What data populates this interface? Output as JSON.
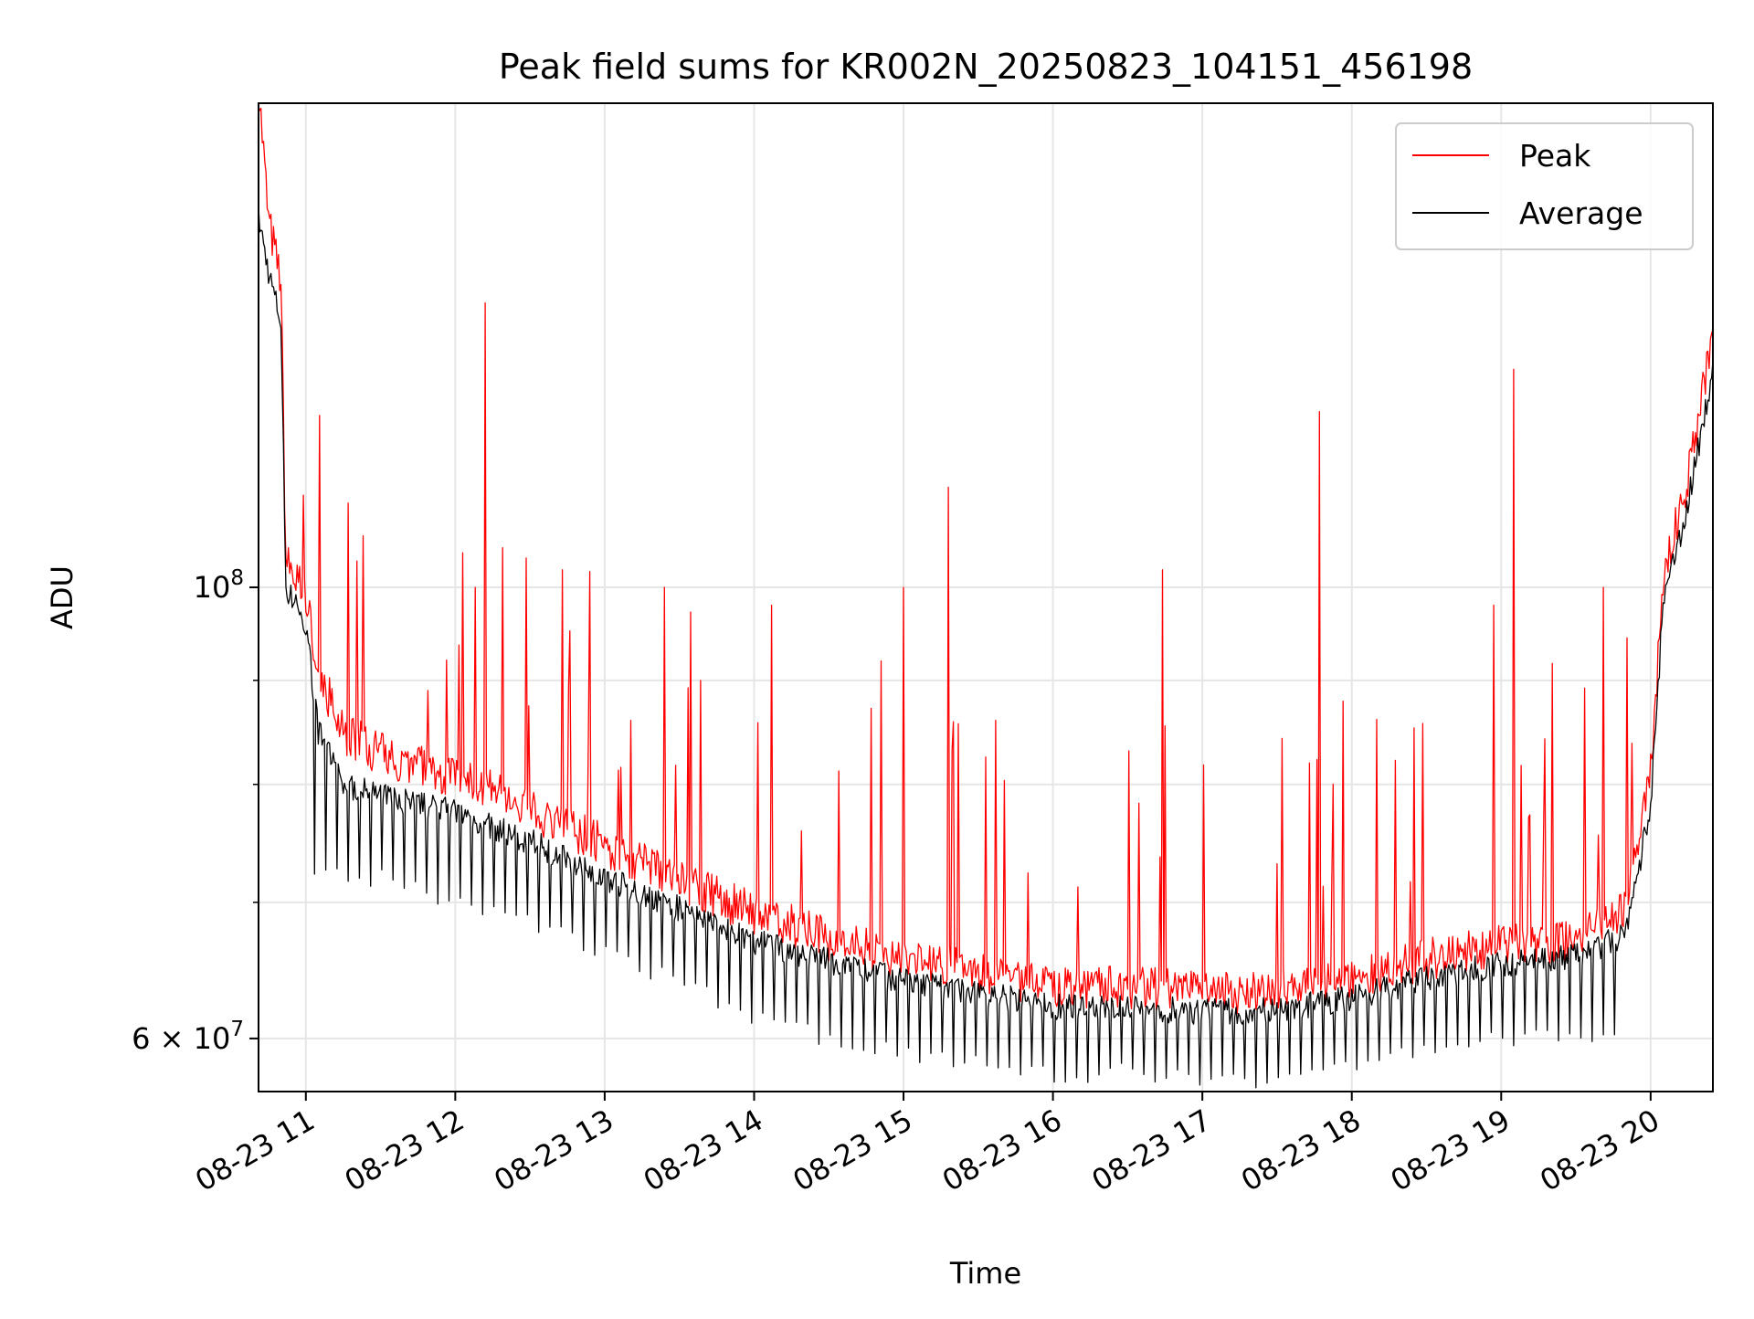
{
  "chart_data": {
    "type": "line",
    "title": "Peak field sums for KR002N_20250823_104151_456198",
    "xlabel": "Time",
    "ylabel": "ADU",
    "y_scale": "log",
    "x_range": [
      "2025-08-23 10:41",
      "2025-08-23 20:25"
    ],
    "ylim": [
      56500000,
      173000000
    ],
    "x_ticks": [
      {
        "t": "2025-08-23 11:00",
        "label": "08-23 11"
      },
      {
        "t": "2025-08-23 12:00",
        "label": "08-23 12"
      },
      {
        "t": "2025-08-23 13:00",
        "label": "08-23 13"
      },
      {
        "t": "2025-08-23 14:00",
        "label": "08-23 14"
      },
      {
        "t": "2025-08-23 15:00",
        "label": "08-23 15"
      },
      {
        "t": "2025-08-23 16:00",
        "label": "08-23 16"
      },
      {
        "t": "2025-08-23 17:00",
        "label": "08-23 17"
      },
      {
        "t": "2025-08-23 18:00",
        "label": "08-23 18"
      },
      {
        "t": "2025-08-23 19:00",
        "label": "08-23 19"
      },
      {
        "t": "2025-08-23 20:00",
        "label": "08-23 20"
      }
    ],
    "y_major_ticks": [
      {
        "value": 60000000,
        "mantissa": "6",
        "times": "×",
        "base": "10",
        "exp": "7"
      },
      {
        "value": 100000000,
        "mantissa": "",
        "times": "",
        "base": "10",
        "exp": "8"
      }
    ],
    "y_minor_ticks": [
      70000000,
      80000000,
      90000000
    ],
    "grid": true,
    "legend_position": "top-right",
    "series": [
      {
        "name": "Peak",
        "color": "#ff0000",
        "points": [
          [
            "2025-08-23 10:41",
            175000000
          ],
          [
            "2025-08-23 10:45",
            150000000
          ],
          [
            "2025-08-23 10:50",
            140000000
          ],
          [
            "2025-08-23 10:52",
            102000000
          ],
          [
            "2025-08-23 11:00",
            98000000
          ],
          [
            "2025-08-23 11:05",
            90000000
          ],
          [
            "2025-08-23 11:15",
            84000000
          ],
          [
            "2025-08-23 11:30",
            82000000
          ],
          [
            "2025-08-23 12:00",
            80000000
          ],
          [
            "2025-08-23 12:30",
            77000000
          ],
          [
            "2025-08-23 13:00",
            74000000
          ],
          [
            "2025-08-23 13:30",
            71000000
          ],
          [
            "2025-08-23 14:00",
            68500000
          ],
          [
            "2025-08-23 14:30",
            66500000
          ],
          [
            "2025-08-23 15:00",
            65000000
          ],
          [
            "2025-08-23 15:30",
            64000000
          ],
          [
            "2025-08-23 16:00",
            63000000
          ],
          [
            "2025-08-23 16:30",
            63000000
          ],
          [
            "2025-08-23 17:00",
            62500000
          ],
          [
            "2025-08-23 17:30",
            62800000
          ],
          [
            "2025-08-23 18:00",
            63500000
          ],
          [
            "2025-08-23 18:30",
            65000000
          ],
          [
            "2025-08-23 19:00",
            66000000
          ],
          [
            "2025-08-23 19:30",
            66500000
          ],
          [
            "2025-08-23 19:50",
            68500000
          ],
          [
            "2025-08-23 20:00",
            80000000
          ],
          [
            "2025-08-23 20:05",
            100000000
          ],
          [
            "2025-08-23 20:15",
            112000000
          ],
          [
            "2025-08-23 20:25",
            132000000
          ]
        ],
        "spikes": [
          [
            "2025-08-23 10:59",
            111000000
          ],
          [
            "2025-08-23 11:17",
            110000000
          ],
          [
            "2025-08-23 11:23",
            106000000
          ],
          [
            "2025-08-23 12:03",
            104000000
          ],
          [
            "2025-08-23 12:08",
            100000000
          ],
          [
            "2025-08-23 12:12",
            138000000
          ],
          [
            "2025-08-23 12:43",
            102000000
          ],
          [
            "2025-08-23 13:24",
            100000000
          ],
          [
            "2025-08-23 14:07",
            98000000
          ],
          [
            "2025-08-23 14:51",
            92000000
          ],
          [
            "2025-08-23 15:00",
            100000000
          ],
          [
            "2025-08-23 15:18",
            112000000
          ],
          [
            "2025-08-23 16:44",
            102000000
          ],
          [
            "2025-08-23 17:47",
            122000000
          ],
          [
            "2025-08-23 18:57",
            98000000
          ],
          [
            "2025-08-23 19:05",
            128000000
          ],
          [
            "2025-08-23 19:41",
            100000000
          ]
        ]
      },
      {
        "name": "Average",
        "color": "#000000",
        "points": [
          [
            "2025-08-23 10:41",
            152000000
          ],
          [
            "2025-08-23 10:45",
            143000000
          ],
          [
            "2025-08-23 10:50",
            135000000
          ],
          [
            "2025-08-23 10:52",
            100000000
          ],
          [
            "2025-08-23 11:00",
            96000000
          ],
          [
            "2025-08-23 11:05",
            85000000
          ],
          [
            "2025-08-23 11:15",
            80000000
          ],
          [
            "2025-08-23 11:30",
            79000000
          ],
          [
            "2025-08-23 12:00",
            77500000
          ],
          [
            "2025-08-23 12:30",
            75000000
          ],
          [
            "2025-08-23 13:00",
            72000000
          ],
          [
            "2025-08-23 13:30",
            69500000
          ],
          [
            "2025-08-23 14:00",
            67000000
          ],
          [
            "2025-08-23 14:30",
            65500000
          ],
          [
            "2025-08-23 15:00",
            64000000
          ],
          [
            "2025-08-23 15:30",
            63200000
          ],
          [
            "2025-08-23 16:00",
            62200000
          ],
          [
            "2025-08-23 16:30",
            62200000
          ],
          [
            "2025-08-23 17:00",
            61800000
          ],
          [
            "2025-08-23 17:30",
            62000000
          ],
          [
            "2025-08-23 18:00",
            62800000
          ],
          [
            "2025-08-23 18:30",
            64200000
          ],
          [
            "2025-08-23 19:00",
            65300000
          ],
          [
            "2025-08-23 19:30",
            65800000
          ],
          [
            "2025-08-23 19:50",
            67500000
          ],
          [
            "2025-08-23 20:00",
            78000000
          ],
          [
            "2025-08-23 20:05",
            98000000
          ],
          [
            "2025-08-23 20:15",
            110000000
          ],
          [
            "2025-08-23 20:25",
            128000000
          ]
        ],
        "dips": [
          [
            "2025-08-23 11:30",
            72000000
          ],
          [
            "2025-08-23 12:00",
            70000000
          ],
          [
            "2025-08-23 12:30",
            68500000
          ],
          [
            "2025-08-23 13:00",
            66000000
          ],
          [
            "2025-08-23 13:30",
            64000000
          ],
          [
            "2025-08-23 14:00",
            61500000
          ],
          [
            "2025-08-23 14:30",
            60000000
          ],
          [
            "2025-08-23 15:00",
            59000000
          ],
          [
            "2025-08-23 15:30",
            58300000
          ],
          [
            "2025-08-23 16:00",
            57500000
          ],
          [
            "2025-08-23 16:30",
            57800000
          ],
          [
            "2025-08-23 17:00",
            57300000
          ],
          [
            "2025-08-23 17:30",
            57300000
          ],
          [
            "2025-08-23 18:00",
            58300000
          ],
          [
            "2025-08-23 18:30",
            59300000
          ],
          [
            "2025-08-23 19:00",
            60000000
          ],
          [
            "2025-08-23 19:30",
            60300000
          ]
        ]
      }
    ]
  }
}
